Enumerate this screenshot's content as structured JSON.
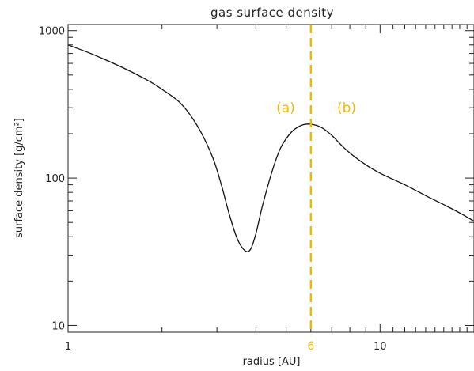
{
  "chart_data": {
    "type": "line",
    "title": "gas surface density",
    "xlabel": "radius [AU]",
    "ylabel": "surface density [g/cm²]",
    "xscale": "log",
    "yscale": "log",
    "xlim": [
      1,
      20
    ],
    "ylim": [
      9,
      1100
    ],
    "xticks": [
      {
        "value": 1,
        "label": "1"
      },
      {
        "value": 10,
        "label": "10"
      }
    ],
    "yticks": [
      {
        "value": 10,
        "label": "10"
      },
      {
        "value": 100,
        "label": "100"
      },
      {
        "value": 1000,
        "label": "1000"
      }
    ],
    "grid": false,
    "series": [
      {
        "color": "#111111",
        "points": [
          [
            1.0,
            800
          ],
          [
            1.2,
            690
          ],
          [
            1.5,
            560
          ],
          [
            1.8,
            460
          ],
          [
            2.0,
            400
          ],
          [
            2.3,
            320
          ],
          [
            2.6,
            225
          ],
          [
            2.9,
            140
          ],
          [
            3.1,
            90
          ],
          [
            3.3,
            55
          ],
          [
            3.5,
            38
          ],
          [
            3.7,
            32
          ],
          [
            3.85,
            33
          ],
          [
            4.0,
            42
          ],
          [
            4.2,
            65
          ],
          [
            4.5,
            110
          ],
          [
            4.8,
            160
          ],
          [
            5.2,
            205
          ],
          [
            5.6,
            228
          ],
          [
            6.0,
            232
          ],
          [
            6.5,
            220
          ],
          [
            7.0,
            195
          ],
          [
            7.5,
            168
          ],
          [
            8.0,
            148
          ],
          [
            9.0,
            123
          ],
          [
            10.0,
            108
          ],
          [
            12.0,
            90
          ],
          [
            14.0,
            76
          ],
          [
            16.0,
            66
          ],
          [
            18.0,
            58
          ],
          [
            20.0,
            51
          ]
        ]
      }
    ],
    "vline": {
      "x": 6,
      "label": "6",
      "color": "#F5B800"
    },
    "annotations": [
      {
        "text": "(a)",
        "x": 4.98,
        "y": 300
      },
      {
        "text": "(b)",
        "x": 7.81,
        "y": 300
      }
    ]
  }
}
